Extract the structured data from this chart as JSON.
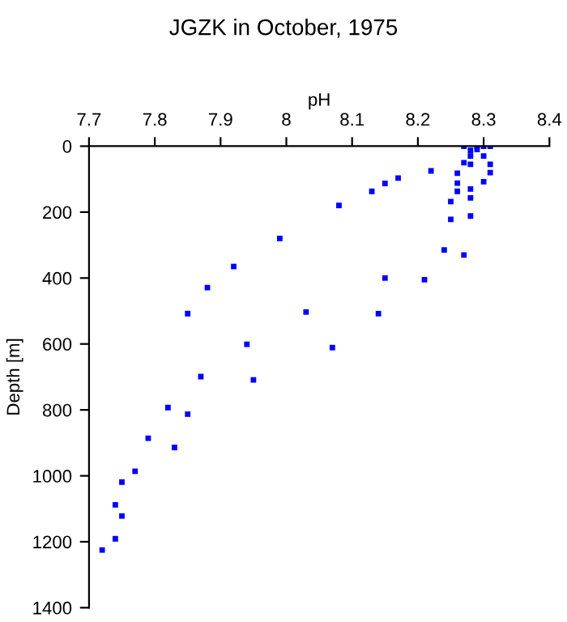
{
  "chart_data": {
    "type": "scatter",
    "title": "JGZK in October, 1975",
    "xlabel": "pH",
    "ylabel": "Depth [m]",
    "series": [
      {
        "color": "#0000ff",
        "x": [
          8.27,
          8.29,
          8.3,
          8.31,
          8.28,
          8.29,
          8.28,
          8.3,
          8.27,
          8.28,
          8.31,
          8.22,
          8.31,
          8.26,
          8.17,
          8.15,
          8.13,
          8.26,
          8.3,
          8.26,
          8.28,
          8.28,
          8.08,
          8.25,
          8.25,
          8.28,
          7.99,
          8.24,
          8.27,
          7.92,
          8.15,
          8.21,
          8.14,
          8.03,
          8.07,
          7.88,
          7.85,
          7.94,
          7.87,
          7.95,
          7.82,
          7.85,
          7.79,
          7.83,
          7.77,
          7.75,
          7.74,
          7.75,
          7.74,
          7.72
        ],
        "values": [
          0,
          0,
          0,
          0,
          13,
          10,
          30,
          30,
          50,
          55,
          55,
          75,
          80,
          82,
          97,
          113,
          137,
          112,
          108,
          137,
          130,
          157,
          180,
          168,
          222,
          212,
          280,
          315,
          330,
          365,
          400,
          405,
          508,
          503,
          611,
          429,
          508,
          601,
          699,
          709,
          793,
          813,
          886,
          914,
          986,
          1019,
          1088,
          1122,
          1191,
          1225
        ]
      }
    ],
    "marker": "square",
    "grid": false,
    "legend": false,
    "xlim": [
      7.7,
      8.4
    ],
    "xticks": [
      7.7,
      7.8,
      7.9,
      8,
      8.1,
      8.2,
      8.3,
      8.4
    ],
    "ylim": [
      1400,
      0
    ],
    "yticks": [
      0,
      200,
      400,
      600,
      800,
      1000,
      1200,
      1400
    ]
  }
}
